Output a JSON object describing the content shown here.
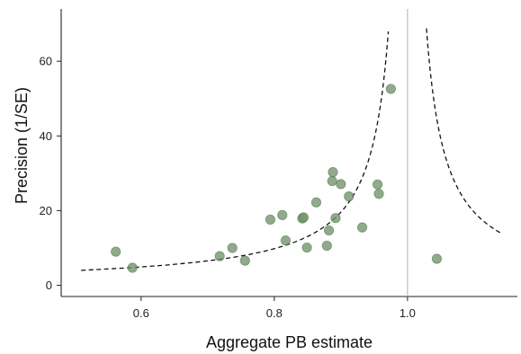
{
  "chart_data": {
    "type": "scatter",
    "title": "",
    "xlabel": "Aggregate PB estimate",
    "ylabel": "Precision (1/SE)",
    "xlim": [
      0.48,
      1.165
    ],
    "ylim": [
      -3,
      74
    ],
    "xticks": [
      0.6,
      0.8,
      1.0
    ],
    "xtick_labels": [
      "0.6",
      "0.8",
      "1.0"
    ],
    "yticks": [
      0,
      20,
      40,
      60
    ],
    "ytick_labels": [
      "0",
      "20",
      "40",
      "60"
    ],
    "grid": false,
    "legend": "none",
    "reference_line_x": 1.0,
    "funnel_reference": 1.0,
    "funnel_k": 1.96,
    "funnel_ymin": 4,
    "funnel_left_ymax": 68,
    "funnel_right_ymax": 69,
    "funnel_right_xmax": 1.14,
    "points": [
      {
        "x": 0.562,
        "y": 9.0
      },
      {
        "x": 0.587,
        "y": 4.7
      },
      {
        "x": 0.718,
        "y": 7.8
      },
      {
        "x": 0.737,
        "y": 10.0
      },
      {
        "x": 0.756,
        "y": 6.6
      },
      {
        "x": 0.794,
        "y": 17.6
      },
      {
        "x": 0.812,
        "y": 18.8
      },
      {
        "x": 0.817,
        "y": 12.0
      },
      {
        "x": 0.842,
        "y": 17.9
      },
      {
        "x": 0.844,
        "y": 18.2
      },
      {
        "x": 0.849,
        "y": 10.1
      },
      {
        "x": 0.863,
        "y": 22.2
      },
      {
        "x": 0.879,
        "y": 10.6
      },
      {
        "x": 0.882,
        "y": 14.7
      },
      {
        "x": 0.887,
        "y": 27.9
      },
      {
        "x": 0.888,
        "y": 30.3
      },
      {
        "x": 0.892,
        "y": 18.0
      },
      {
        "x": 0.9,
        "y": 27.1
      },
      {
        "x": 0.912,
        "y": 23.8
      },
      {
        "x": 0.932,
        "y": 15.5
      },
      {
        "x": 0.955,
        "y": 27.0
      },
      {
        "x": 0.957,
        "y": 24.5
      },
      {
        "x": 0.975,
        "y": 52.6
      },
      {
        "x": 1.044,
        "y": 7.1
      }
    ],
    "colors": {
      "point_fill": "#6f9468",
      "point_stroke": "#4f6e4b",
      "reference_line": "#bdbdbd",
      "axis": "#222222",
      "funnel": "#111111"
    }
  }
}
